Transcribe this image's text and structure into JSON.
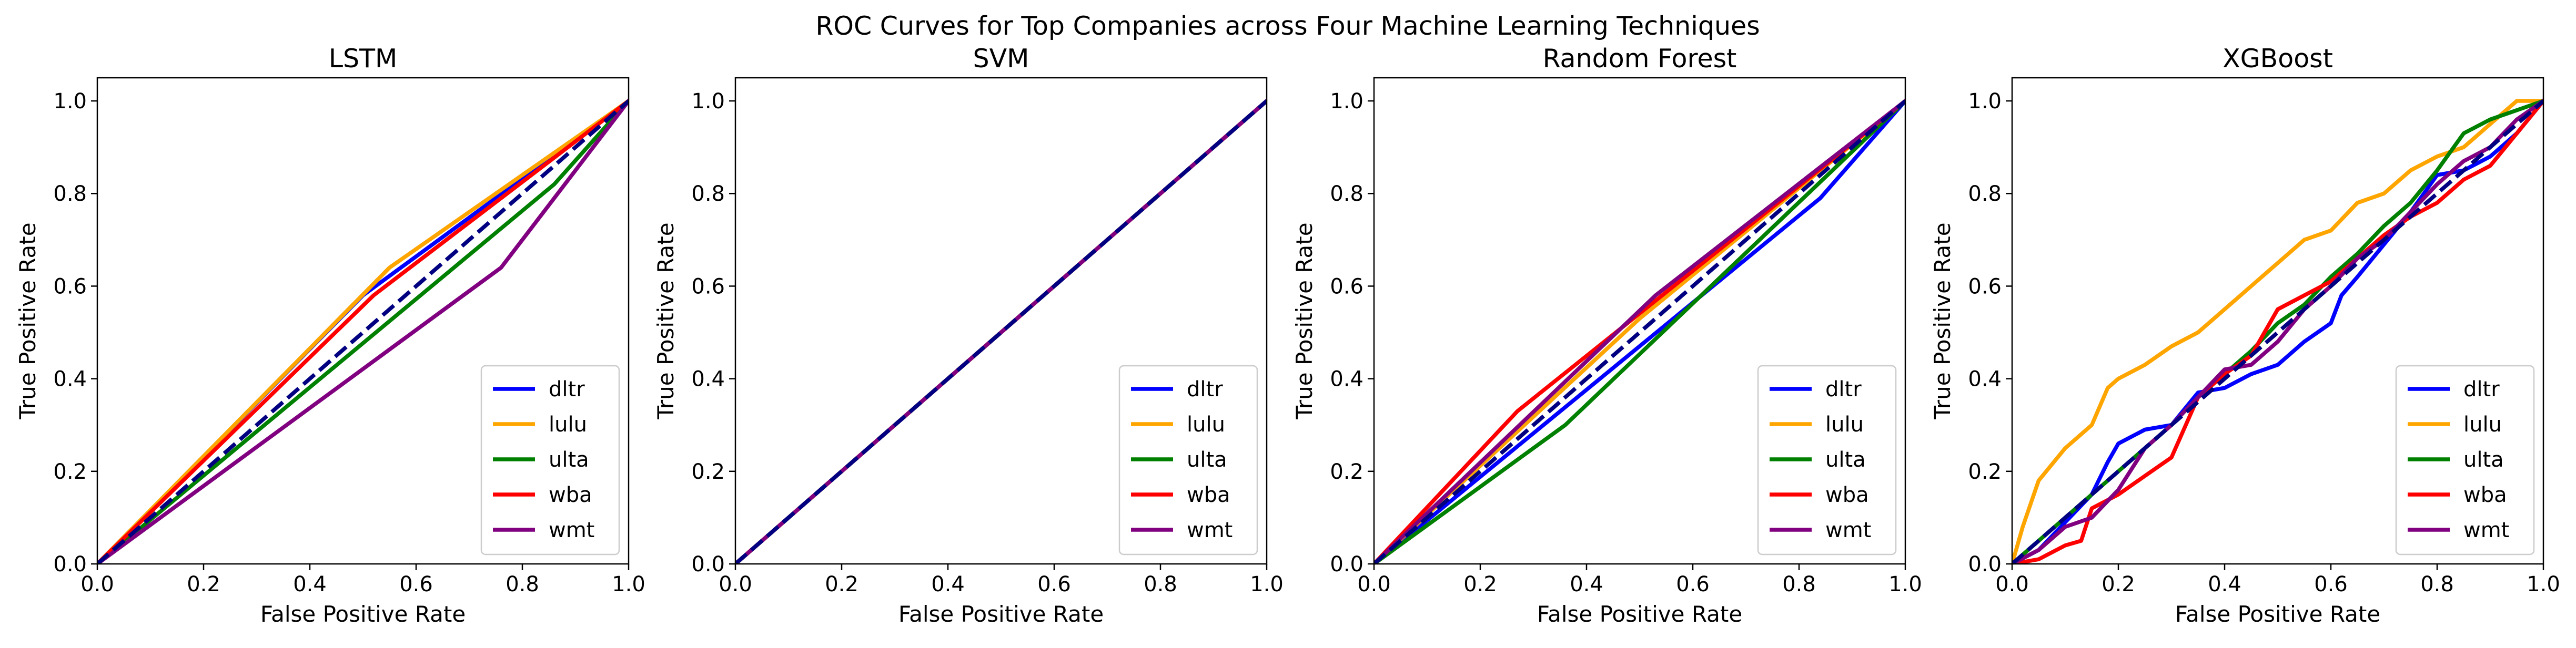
{
  "chart_data": {
    "type": "line",
    "title": "ROC Curves for Top Companies across Four Machine Learning Techniques",
    "legend_position": "lower-right",
    "reference_line": {
      "x": [
        0,
        1
      ],
      "y": [
        0,
        1
      ],
      "color": "#000080",
      "style": "dashed"
    },
    "panels": [
      {
        "title": "LSTM",
        "xlabel": "False Positive Rate",
        "ylabel": "True Positive Rate",
        "xlim": [
          0,
          1.0
        ],
        "ylim": [
          0,
          1.05
        ],
        "xticks": [
          "0.0",
          "0.2",
          "0.4",
          "0.6",
          "0.8",
          "1.0"
        ],
        "yticks": [
          "0.0",
          "0.2",
          "0.4",
          "0.6",
          "0.8",
          "1.0"
        ],
        "series": [
          {
            "name": "dltr",
            "color": "#0000ff",
            "x": [
              0,
              0.5,
              1
            ],
            "y": [
              0,
              0.58,
              1
            ]
          },
          {
            "name": "lulu",
            "color": "#ffa500",
            "x": [
              0,
              0.55,
              1
            ],
            "y": [
              0,
              0.64,
              1
            ]
          },
          {
            "name": "ulta",
            "color": "#008000",
            "x": [
              0,
              0.86,
              1
            ],
            "y": [
              0,
              0.82,
              1
            ]
          },
          {
            "name": "wba",
            "color": "#ff0000",
            "x": [
              0,
              0.52,
              1
            ],
            "y": [
              0,
              0.58,
              1
            ]
          },
          {
            "name": "wmt",
            "color": "#800080",
            "x": [
              0,
              0.76,
              1
            ],
            "y": [
              0,
              0.64,
              1
            ]
          }
        ]
      },
      {
        "title": "SVM",
        "xlabel": "False Positive Rate",
        "ylabel": "True Positive Rate",
        "xlim": [
          0,
          1.0
        ],
        "ylim": [
          0,
          1.05
        ],
        "xticks": [
          "0.0",
          "0.2",
          "0.4",
          "0.6",
          "0.8",
          "1.0"
        ],
        "yticks": [
          "0.0",
          "0.2",
          "0.4",
          "0.6",
          "0.8",
          "1.0"
        ],
        "series": [
          {
            "name": "dltr",
            "color": "#0000ff",
            "x": [
              0,
              1
            ],
            "y": [
              0,
              1
            ]
          },
          {
            "name": "lulu",
            "color": "#ffa500",
            "x": [
              0,
              1
            ],
            "y": [
              0,
              1
            ]
          },
          {
            "name": "ulta",
            "color": "#008000",
            "x": [
              0,
              1
            ],
            "y": [
              0,
              1
            ]
          },
          {
            "name": "wba",
            "color": "#ff0000",
            "x": [
              0,
              1
            ],
            "y": [
              0,
              1
            ]
          },
          {
            "name": "wmt",
            "color": "#800080",
            "x": [
              0,
              1
            ],
            "y": [
              0,
              1
            ]
          }
        ]
      },
      {
        "title": "Random Forest",
        "xlabel": "False Positive Rate",
        "ylabel": "True Positive Rate",
        "xlim": [
          0,
          1.0
        ],
        "ylim": [
          0,
          1.05
        ],
        "xticks": [
          "0.0",
          "0.2",
          "0.4",
          "0.6",
          "0.8",
          "1.0"
        ],
        "yticks": [
          "0.0",
          "0.2",
          "0.4",
          "0.6",
          "0.8",
          "1.0"
        ],
        "series": [
          {
            "name": "dltr",
            "color": "#0000ff",
            "x": [
              0,
              0.84,
              1
            ],
            "y": [
              0,
              0.79,
              1
            ]
          },
          {
            "name": "lulu",
            "color": "#ffa500",
            "x": [
              0,
              0.5,
              1
            ],
            "y": [
              0,
              0.53,
              1
            ]
          },
          {
            "name": "ulta",
            "color": "#008000",
            "x": [
              0,
              0.36,
              1
            ],
            "y": [
              0,
              0.3,
              1
            ]
          },
          {
            "name": "wba",
            "color": "#ff0000",
            "x": [
              0,
              0.27,
              1
            ],
            "y": [
              0,
              0.33,
              1
            ]
          },
          {
            "name": "wmt",
            "color": "#800080",
            "x": [
              0,
              0.53,
              1
            ],
            "y": [
              0,
              0.58,
              1
            ]
          }
        ]
      },
      {
        "title": "XGBoost",
        "xlabel": "False Positive Rate",
        "ylabel": "True Positive Rate",
        "xlim": [
          0,
          1.0
        ],
        "ylim": [
          0,
          1.05
        ],
        "xticks": [
          "0.0",
          "0.2",
          "0.4",
          "0.6",
          "0.8",
          "1.0"
        ],
        "yticks": [
          "0.0",
          "0.2",
          "0.4",
          "0.6",
          "0.8",
          "1.0"
        ],
        "series": [
          {
            "name": "dltr",
            "color": "#0000ff",
            "x": [
              0,
              0.05,
              0.1,
              0.15,
              0.18,
              0.2,
              0.25,
              0.3,
              0.35,
              0.4,
              0.45,
              0.5,
              0.55,
              0.6,
              0.62,
              0.65,
              0.7,
              0.75,
              0.8,
              0.85,
              0.9,
              0.95,
              1
            ],
            "y": [
              0,
              0.03,
              0.09,
              0.15,
              0.22,
              0.26,
              0.29,
              0.3,
              0.37,
              0.38,
              0.41,
              0.43,
              0.48,
              0.52,
              0.58,
              0.62,
              0.69,
              0.76,
              0.84,
              0.85,
              0.88,
              0.93,
              1
            ]
          },
          {
            "name": "lulu",
            "color": "#ffa500",
            "x": [
              0,
              0.02,
              0.05,
              0.1,
              0.15,
              0.18,
              0.2,
              0.25,
              0.3,
              0.35,
              0.4,
              0.45,
              0.5,
              0.55,
              0.6,
              0.65,
              0.7,
              0.75,
              0.8,
              0.85,
              0.9,
              0.95,
              1
            ],
            "y": [
              0,
              0.08,
              0.18,
              0.25,
              0.3,
              0.38,
              0.4,
              0.43,
              0.47,
              0.5,
              0.55,
              0.6,
              0.65,
              0.7,
              0.72,
              0.78,
              0.8,
              0.85,
              0.88,
              0.9,
              0.95,
              1.0,
              1
            ]
          },
          {
            "name": "ulta",
            "color": "#008000",
            "x": [
              0,
              0.05,
              0.1,
              0.15,
              0.2,
              0.25,
              0.3,
              0.35,
              0.4,
              0.45,
              0.5,
              0.55,
              0.6,
              0.65,
              0.7,
              0.75,
              0.8,
              0.85,
              0.9,
              0.95,
              1
            ],
            "y": [
              0,
              0.05,
              0.1,
              0.15,
              0.2,
              0.25,
              0.3,
              0.36,
              0.41,
              0.46,
              0.52,
              0.56,
              0.62,
              0.67,
              0.73,
              0.78,
              0.85,
              0.93,
              0.96,
              0.98,
              1
            ]
          },
          {
            "name": "wba",
            "color": "#ff0000",
            "x": [
              0,
              0.05,
              0.1,
              0.13,
              0.15,
              0.2,
              0.25,
              0.3,
              0.35,
              0.4,
              0.45,
              0.5,
              0.55,
              0.6,
              0.65,
              0.7,
              0.75,
              0.8,
              0.85,
              0.9,
              0.95,
              1
            ],
            "y": [
              0,
              0.01,
              0.04,
              0.05,
              0.12,
              0.15,
              0.19,
              0.23,
              0.36,
              0.41,
              0.45,
              0.55,
              0.58,
              0.61,
              0.66,
              0.71,
              0.75,
              0.78,
              0.83,
              0.86,
              0.93,
              1
            ]
          },
          {
            "name": "wmt",
            "color": "#800080",
            "x": [
              0,
              0.05,
              0.1,
              0.15,
              0.2,
              0.25,
              0.3,
              0.35,
              0.4,
              0.45,
              0.5,
              0.55,
              0.6,
              0.65,
              0.7,
              0.75,
              0.8,
              0.85,
              0.9,
              0.95,
              1
            ],
            "y": [
              0,
              0.03,
              0.08,
              0.1,
              0.16,
              0.25,
              0.3,
              0.36,
              0.42,
              0.43,
              0.48,
              0.55,
              0.6,
              0.66,
              0.7,
              0.76,
              0.82,
              0.87,
              0.9,
              0.96,
              1
            ]
          }
        ]
      }
    ]
  }
}
